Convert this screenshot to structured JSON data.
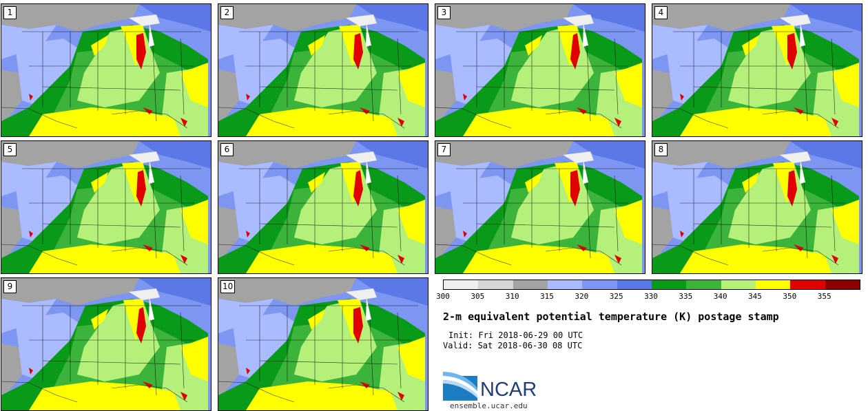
{
  "title": "2-m equivalent potential temperature (K) postage stamp",
  "init_line": "Init: Fri 2018-06-29 00 UTC",
  "valid_line": "Valid: Sat 2018-06-30 08 UTC",
  "logo": {
    "text": "NCAR",
    "site": "ensemble.ucar.edu"
  },
  "panels": [
    {
      "label": "1"
    },
    {
      "label": "2"
    },
    {
      "label": "3"
    },
    {
      "label": "4"
    },
    {
      "label": "5"
    },
    {
      "label": "6"
    },
    {
      "label": "7"
    },
    {
      "label": "8"
    },
    {
      "label": "9"
    },
    {
      "label": "10"
    }
  ],
  "colorbar": {
    "unit": "K",
    "ticks": [
      "300",
      "305",
      "310",
      "315",
      "320",
      "325",
      "330",
      "335",
      "340",
      "345",
      "350",
      "355"
    ],
    "colors": [
      "#efefef",
      "#d6d6d6",
      "#a3a3a3",
      "#aabbff",
      "#7c96f2",
      "#5c78e6",
      "#0a9a1a",
      "#3cb43c",
      "#b4f07a",
      "#ffff00",
      "#e00000",
      "#8b0000"
    ]
  }
}
